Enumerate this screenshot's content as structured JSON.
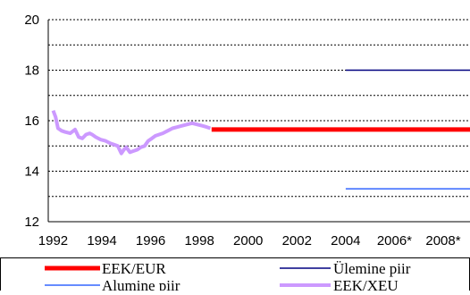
{
  "chart_data": {
    "type": "line",
    "title": "",
    "xlabel": "",
    "ylabel": "",
    "xlim": [
      1992.3,
      2009.6
    ],
    "ylim": [
      12,
      20
    ],
    "y_ticks": [
      12,
      14,
      16,
      18,
      20
    ],
    "x_ticks": [
      {
        "value": 1992.5,
        "label": "1992"
      },
      {
        "value": 1994.5,
        "label": "1994"
      },
      {
        "value": 1996.5,
        "label": "1996"
      },
      {
        "value": 1998.5,
        "label": "1998"
      },
      {
        "value": 2000.5,
        "label": "2000"
      },
      {
        "value": 2002.5,
        "label": "2002"
      },
      {
        "value": 2004.5,
        "label": "2004"
      },
      {
        "value": 2006.5,
        "label": "2006*"
      },
      {
        "value": 2008.5,
        "label": "2008*"
      }
    ],
    "grid": {
      "horizontal": true,
      "vertical": false,
      "style": "dotted"
    },
    "legend_placement": "bottom",
    "series": [
      {
        "name": "EEK/XEU",
        "color": "#cc99ff",
        "x": [
          1992.5,
          1992.6,
          1992.7,
          1992.85,
          1993.0,
          1993.2,
          1993.4,
          1993.55,
          1993.7,
          1993.85,
          1994.0,
          1994.1,
          1994.25,
          1994.45,
          1994.65,
          1994.85,
          1995.0,
          1995.15,
          1995.3,
          1995.4,
          1995.5,
          1995.65,
          1995.8,
          1995.95,
          1996.1,
          1996.25,
          1996.4,
          1996.55,
          1996.7,
          1996.85,
          1997.0,
          1997.2,
          1997.4,
          1997.6,
          1997.8,
          1998.0,
          1998.2,
          1998.4,
          1998.6,
          1998.8,
          1998.95
        ],
        "values": [
          16.4,
          16.15,
          15.7,
          15.6,
          15.55,
          15.5,
          15.65,
          15.35,
          15.3,
          15.45,
          15.5,
          15.45,
          15.35,
          15.25,
          15.2,
          15.1,
          15.05,
          15.0,
          14.7,
          14.85,
          14.95,
          14.75,
          14.8,
          14.85,
          14.95,
          15.0,
          15.2,
          15.3,
          15.4,
          15.45,
          15.5,
          15.6,
          15.7,
          15.75,
          15.8,
          15.85,
          15.9,
          15.85,
          15.8,
          15.75,
          15.7
        ]
      },
      {
        "name": "EEK/EUR",
        "color": "#ff0000",
        "x": [
          1999.0,
          2009.6
        ],
        "values": [
          15.65,
          15.65
        ]
      },
      {
        "name": "Ülemine piir",
        "color": "#000080",
        "x": [
          2004.5,
          2009.6
        ],
        "values": [
          18.0,
          18.0
        ]
      },
      {
        "name": "Alumine piir",
        "color": "#3366ff",
        "x": [
          2004.5,
          2009.6
        ],
        "values": [
          13.3,
          13.3
        ]
      }
    ],
    "legend": [
      {
        "label": "EEK/EUR",
        "series": "EEK/EUR",
        "color": "#ff0000"
      },
      {
        "label": "Ülemine piir",
        "series": "Ülemine piir",
        "color": "#000080"
      },
      {
        "label": "Alumine piir",
        "series": "Alumine piir",
        "color": "#3366ff"
      },
      {
        "label": "EEK/XEU",
        "series": "EEK/XEU",
        "color": "#cc99ff"
      }
    ]
  }
}
